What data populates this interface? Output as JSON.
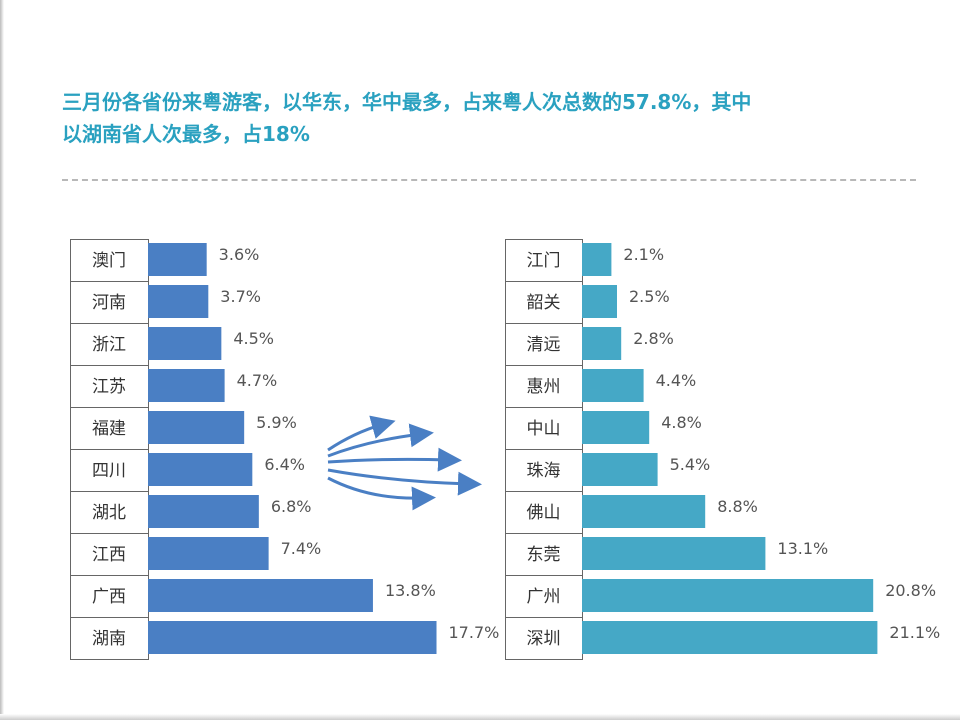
{
  "headline": {
    "line1": "三月份各省份来粤游客，以华东，华中最多，占来粤人次总数的57.8%，其中",
    "line2": "以湖南省人次最多，占18%"
  },
  "colors": {
    "headline": "#2aa1c0",
    "left_bar": "#4a7fc4",
    "right_bar": "#45a8c6",
    "arrow": "#4a7fc4"
  },
  "chart_data": [
    {
      "type": "bar",
      "orientation": "horizontal",
      "categories": [
        "澳门",
        "河南",
        "浙江",
        "江苏",
        "福建",
        "四川",
        "湖北",
        "江西",
        "广西",
        "湖南"
      ],
      "values": [
        3.6,
        3.7,
        4.5,
        4.7,
        5.9,
        6.4,
        6.8,
        7.4,
        13.8,
        17.7
      ],
      "value_labels": [
        "3.6%",
        "3.7%",
        "4.5%",
        "4.7%",
        "5.9%",
        "6.4%",
        "6.8%",
        "7.4%",
        "13.8%",
        "17.7%"
      ],
      "xlim": [
        0,
        20
      ],
      "grid": false
    },
    {
      "type": "bar",
      "orientation": "horizontal",
      "categories": [
        "江门",
        "韶关",
        "清远",
        "惠州",
        "中山",
        "珠海",
        "佛山",
        "东莞",
        "广州",
        "深圳"
      ],
      "values": [
        2.1,
        2.5,
        2.8,
        4.4,
        4.8,
        5.4,
        8.8,
        13.1,
        20.8,
        21.1
      ],
      "value_labels": [
        "2.1%",
        "2.5%",
        "2.8%",
        "4.4%",
        "4.8%",
        "5.4%",
        "8.8%",
        "13.1%",
        "20.8%",
        "21.1%"
      ],
      "xlim": [
        0,
        21.1
      ],
      "grid": false
    }
  ]
}
